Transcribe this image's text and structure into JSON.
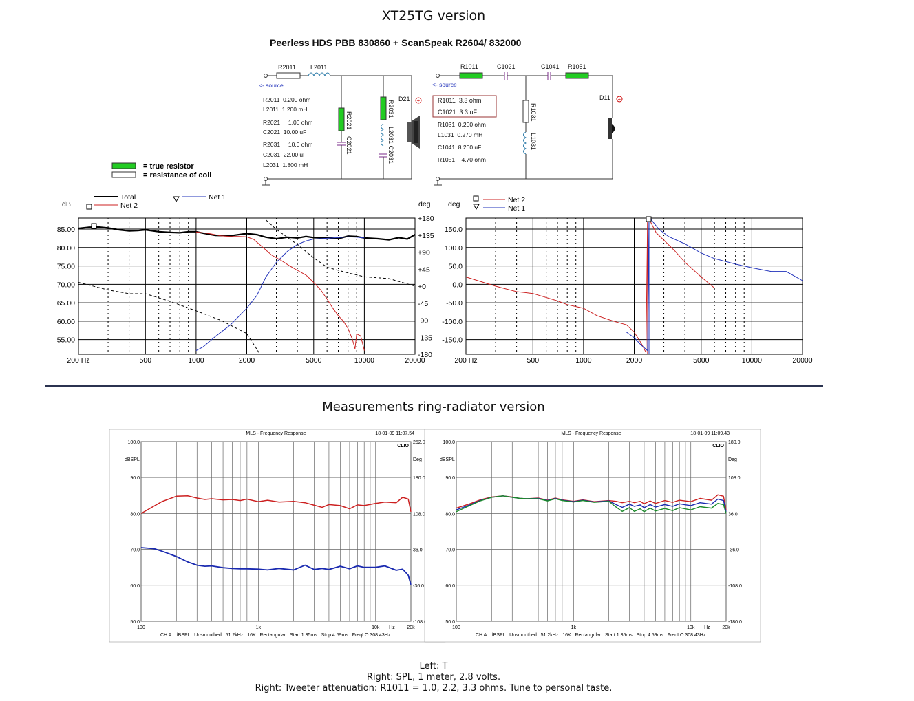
{
  "page": {
    "title": "XT25TG version",
    "subtitle": "Peerless HDS PBB 830860 + ScanSpeak R2604/ 832000",
    "measurements_title": "Measurements ring-radiator version",
    "captions": [
      "Left: T",
      "Right: SPL, 1 meter, 2.8 volts.",
      "Right: Tweeter attenuation: R1011 = 1.0, 2.2, 3.3 ohms. Tune to personal taste."
    ]
  },
  "schematic": {
    "woofer": {
      "labels": {
        "r2011": "R2011",
        "l2011": "L2011",
        "r2021": "R2021",
        "c2021": "C2021",
        "r2031": "R2031",
        "l2031_c2031": "L2031 C2031",
        "d21": "D21",
        "source": "<- source"
      },
      "values": [
        "R2011  0.200 ohm",
        "L2011  1.200 mH",
        "R2021     1.00 ohm",
        "C2021  10.00 uF",
        "R2031     10.0 ohm",
        "C2031  22.00 uF",
        "L2031  1.800 mH"
      ]
    },
    "tweeter": {
      "labels": {
        "r1011": "R1011",
        "c1021": "C1021",
        "c1041": "C1041",
        "r1051": "R1051",
        "r1031": "R1031",
        "l1031": "L1031",
        "d11": "D11",
        "source": "<- source"
      },
      "highlight": [
        "R1011  3.3 ohm",
        "C1021  3.3 uF"
      ],
      "values": [
        "R1031  0.200 ohm",
        "L1031  0.270 mH",
        "C1041  8.200 uF",
        "R1051    4.70 ohm"
      ]
    },
    "legend": {
      "true_resistor": "= true resistor",
      "coil_resistance": "= resistance of coil"
    },
    "colors": {
      "resistor_fill": "#22cc22",
      "capacitor": "#7a2a8a",
      "coil": "#2a7aa8",
      "plus": "#cc0000"
    }
  },
  "chart_data": [
    {
      "type": "line",
      "id": "sim-left",
      "left_axis_unit": "dB",
      "right_axis_unit": "deg",
      "x_scale": "log",
      "xlim": [
        200,
        20000
      ],
      "x_ticks": [
        {
          "v": 200,
          "label": "200 Hz"
        },
        {
          "v": 500,
          "label": "500"
        },
        {
          "v": 1000,
          "label": "1000"
        },
        {
          "v": 2000,
          "label": "2000"
        },
        {
          "v": 5000,
          "label": "5000"
        },
        {
          "v": 10000,
          "label": "10000"
        },
        {
          "v": 20000,
          "label": "20000"
        }
      ],
      "ylim_left": [
        51,
        88
      ],
      "y_ticks_left": [
        "55.00",
        "60.00",
        "65.00",
        "70.00",
        "75.00",
        "80.00",
        "85.00"
      ],
      "ylim_right": [
        -180,
        180
      ],
      "y_ticks_right": [
        "-180",
        "-135",
        "-90",
        "-45",
        "+0",
        "+45",
        "+90",
        "+135",
        "+180"
      ],
      "grid": true,
      "legend": [
        {
          "name": "Total",
          "color": "#000000"
        },
        {
          "name": "Net 2",
          "color": "#cc2222"
        },
        {
          "name": "Net 1",
          "color": "#2233bb"
        }
      ],
      "series": [
        {
          "name": "Total",
          "color": "#000000",
          "axis": "left",
          "width": 2.2,
          "x": [
            200,
            230,
            260,
            300,
            350,
            400,
            450,
            500,
            600,
            700,
            800,
            900,
            1000,
            1100,
            1300,
            1600,
            2000,
            2300,
            2600,
            3000,
            3500,
            4000,
            4500,
            5000,
            6000,
            7000,
            8000,
            9000,
            10000,
            12000,
            14000,
            16000,
            18000,
            20000
          ],
          "y": [
            85.2,
            85.5,
            85.6,
            85.3,
            84.8,
            84.5,
            84.6,
            84.8,
            84.3,
            84.1,
            84.0,
            84.3,
            84.3,
            83.9,
            83.3,
            83.2,
            83.8,
            83.5,
            82.8,
            82.4,
            82.8,
            82.6,
            83.0,
            82.7,
            82.7,
            82.4,
            83.1,
            83.0,
            82.6,
            82.4,
            82.1,
            82.7,
            82.3,
            83.5
          ]
        },
        {
          "name": "Net 2",
          "color": "#cc2222",
          "axis": "left",
          "width": 1,
          "x": [
            1000,
            1200,
            1400,
            1600,
            1800,
            2000,
            2200,
            2500,
            2800,
            3200,
            3600,
            4000,
            4500,
            5000,
            5500,
            6000,
            6500,
            7000,
            7500,
            8000,
            8500,
            8800,
            9000,
            9500,
            10000
          ],
          "y": [
            84.2,
            83.8,
            83.2,
            83.0,
            83.0,
            82.9,
            82.2,
            80.0,
            78.0,
            76.5,
            75.0,
            73.8,
            72.5,
            70.5,
            68.5,
            66.0,
            63.5,
            61.5,
            60.0,
            58.0,
            55.0,
            52.5,
            56.5,
            56.0,
            52.0
          ]
        },
        {
          "name": "Net 1",
          "color": "#2233bb",
          "axis": "left",
          "width": 1,
          "x": [
            1000,
            1100,
            1300,
            1600,
            2000,
            2300,
            2600,
            3000,
            3500,
            4000,
            4500,
            5000,
            6000,
            7000,
            8000,
            9000,
            10000
          ],
          "y": [
            52.0,
            53.0,
            55.8,
            59.0,
            63.5,
            67.0,
            72.0,
            76.0,
            79.0,
            80.8,
            81.8,
            82.3,
            82.5,
            82.7,
            82.9,
            82.8,
            82.6
          ]
        },
        {
          "name": "Total phase",
          "color": "#000000",
          "axis": "right",
          "dash": "4,3",
          "width": 1,
          "x": [
            200,
            300,
            400,
            500,
            700,
            1000,
            1400,
            2000,
            2400,
            2600,
            3000,
            4000,
            5000,
            6000,
            8000,
            10000,
            14000,
            20000
          ],
          "y": [
            10,
            -10,
            -20,
            -20,
            -40,
            -65,
            -90,
            -125,
            -180,
            175,
            150,
            110,
            75,
            50,
            35,
            25,
            20,
            0
          ]
        }
      ]
    },
    {
      "type": "line",
      "id": "sim-right",
      "left_axis_unit": "deg",
      "x_scale": "log",
      "xlim": [
        200,
        20000
      ],
      "x_ticks": [
        {
          "v": 200,
          "label": "200 Hz"
        },
        {
          "v": 500,
          "label": "500"
        },
        {
          "v": 1000,
          "label": "1000"
        },
        {
          "v": 2000,
          "label": "2000"
        },
        {
          "v": 5000,
          "label": "5000"
        },
        {
          "v": 10000,
          "label": "10000"
        },
        {
          "v": 20000,
          "label": "20000"
        }
      ],
      "ylim_left": [
        -190,
        180
      ],
      "y_ticks_left": [
        "-150.0",
        "-100.0",
        "-50.0",
        "0.0",
        "50.0",
        "100.0",
        "150.0"
      ],
      "grid": true,
      "legend": [
        {
          "name": "Net 2",
          "color": "#cc2222"
        },
        {
          "name": "Net 1",
          "color": "#2233bb"
        }
      ],
      "series": [
        {
          "name": "Net 2",
          "color": "#cc2222",
          "axis": "left",
          "width": 1,
          "x": [
            200,
            300,
            400,
            500,
            700,
            800,
            1000,
            1200,
            1500,
            1800,
            2000,
            2200,
            2350,
            2400,
            2450,
            2500,
            2700,
            3000,
            3500,
            4000,
            5000,
            6000
          ],
          "y": [
            20,
            -5,
            -20,
            -25,
            -45,
            -55,
            -65,
            -85,
            -100,
            -110,
            -130,
            -160,
            -185,
            170,
            175,
            170,
            140,
            120,
            90,
            60,
            20,
            -10
          ]
        },
        {
          "name": "Net 1",
          "color": "#2233bb",
          "axis": "left",
          "width": 1,
          "x": [
            1800,
            2000,
            2200,
            2400,
            2450,
            2500,
            2800,
            3200,
            4000,
            5000,
            6000,
            8000,
            10000,
            13000,
            16000,
            20000
          ],
          "y": [
            -130,
            -145,
            -165,
            -180,
            170,
            178,
            150,
            130,
            110,
            85,
            70,
            55,
            45,
            35,
            35,
            10
          ]
        }
      ]
    },
    {
      "type": "line",
      "id": "meas-left",
      "header_title": "MLS - Frequency Response",
      "timestamp": "18-01-09 11:07.54",
      "brand": "CLIO",
      "left_unit": "dBSPL",
      "right_unit": "Deg",
      "x_scale": "log",
      "xlim": [
        100,
        20000
      ],
      "x_ticks": [
        {
          "v": 100,
          "label": "100"
        },
        {
          "v": 1000,
          "label": "1k"
        },
        {
          "v": 10000,
          "label": "10k"
        },
        {
          "v": 20000,
          "label": "20k"
        }
      ],
      "x_unit_label": "Hz",
      "ylim_left": [
        50,
        100
      ],
      "y_ticks_left": [
        "50.0",
        "60.0",
        "70.0",
        "80.0",
        "90.0",
        "100.0"
      ],
      "y_ticks_right": [
        "-108.0",
        "-36.0",
        "36.0",
        "108.0",
        "180.0",
        "252.0"
      ],
      "footer": "CH A   dBSPL   Unsmoothed   51.2kHz   16K   Rectangular   Start 1.35ms   Stop 4.59ms   FreqLO 308.43Hz",
      "series": [
        {
          "name": "red",
          "color": "#cc2020",
          "width": 1.5,
          "x": [
            100,
            120,
            150,
            200,
            250,
            300,
            350,
            400,
            500,
            600,
            700,
            800,
            1000,
            1200,
            1500,
            2000,
            2500,
            3000,
            3500,
            4000,
            5000,
            6000,
            7000,
            8000,
            10000,
            12000,
            15000,
            17000,
            19000,
            20000
          ],
          "y": [
            80.0,
            81.5,
            83.3,
            84.8,
            84.9,
            84.3,
            83.9,
            84.1,
            83.8,
            83.9,
            83.6,
            84.0,
            83.3,
            83.7,
            83.2,
            83.4,
            83.0,
            82.3,
            81.7,
            82.5,
            82.2,
            81.3,
            82.4,
            82.2,
            82.8,
            83.2,
            83.0,
            84.5,
            84.0,
            80.5
          ]
        },
        {
          "name": "blue",
          "color": "#1a2ab0",
          "width": 1.8,
          "x": [
            100,
            130,
            160,
            200,
            250,
            300,
            350,
            400,
            500,
            600,
            700,
            800,
            1000,
            1200,
            1500,
            2000,
            2500,
            3000,
            3500,
            4000,
            5000,
            6000,
            7000,
            8000,
            10000,
            12000,
            15000,
            17000,
            19000,
            20000
          ],
          "y": [
            70.5,
            70.2,
            69.2,
            68.0,
            66.5,
            65.6,
            65.3,
            65.4,
            64.9,
            64.7,
            64.6,
            64.6,
            64.5,
            64.3,
            64.7,
            64.3,
            65.6,
            64.4,
            64.7,
            64.4,
            65.3,
            64.6,
            65.4,
            65.0,
            65.0,
            65.4,
            64.2,
            64.5,
            62.8,
            60.2
          ]
        }
      ]
    },
    {
      "type": "line",
      "id": "meas-right",
      "header_title": "MLS - Frequency Response",
      "timestamp": "18-01-09 11:09.43",
      "brand": "CLIO",
      "left_unit": "dBSPL",
      "right_unit": "Deg",
      "x_scale": "log",
      "xlim": [
        100,
        20000
      ],
      "x_ticks": [
        {
          "v": 100,
          "label": "100"
        },
        {
          "v": 1000,
          "label": "1k"
        },
        {
          "v": 10000,
          "label": "10k"
        },
        {
          "v": 20000,
          "label": "20k"
        }
      ],
      "x_unit_label": "Hz",
      "ylim_left": [
        50,
        100
      ],
      "y_ticks_left": [
        "50.0",
        "60.0",
        "70.0",
        "80.0",
        "90.0",
        "100.0"
      ],
      "y_ticks_right": [
        "-180.0",
        "-108.0",
        "-36.0",
        "36.0",
        "108.0",
        "180.0"
      ],
      "footer": "CH A   dBSPL   Unsmoothed   51.2kHz   16K   Rectangular   Start 1.35ms   Stop 4.59ms   FreqLO 308.43Hz",
      "series": [
        {
          "name": "red",
          "color": "#cc2020",
          "width": 1.4,
          "x": [
            100,
            130,
            160,
            200,
            250,
            300,
            350,
            400,
            500,
            600,
            700,
            800,
            1000,
            1200,
            1500,
            2000,
            2300,
            2600,
            3000,
            3300,
            3700,
            4000,
            4500,
            5000,
            6000,
            7000,
            8000,
            10000,
            12000,
            15000,
            17000,
            19000,
            20000
          ],
          "y": [
            81.5,
            82.7,
            83.8,
            84.6,
            84.9,
            84.6,
            84.2,
            84.1,
            84.3,
            83.7,
            84.3,
            83.8,
            83.4,
            83.8,
            83.3,
            83.6,
            83.4,
            83.0,
            83.4,
            83.0,
            83.4,
            82.7,
            83.5,
            82.8,
            83.6,
            83.1,
            83.7,
            83.3,
            84.2,
            83.7,
            85.2,
            84.8,
            81.0
          ]
        },
        {
          "name": "blue",
          "color": "#1a2ab0",
          "width": 1.4,
          "x": [
            100,
            130,
            160,
            200,
            250,
            300,
            350,
            400,
            500,
            600,
            700,
            800,
            1000,
            1200,
            1500,
            2000,
            2300,
            2600,
            3000,
            3300,
            3700,
            4000,
            4500,
            5000,
            6000,
            7000,
            8000,
            10000,
            12000,
            15000,
            17000,
            19000,
            20000
          ],
          "y": [
            81.0,
            82.4,
            83.6,
            84.5,
            84.9,
            84.5,
            84.2,
            84.1,
            84.2,
            83.6,
            84.2,
            83.7,
            83.3,
            83.7,
            83.2,
            83.5,
            82.5,
            81.7,
            82.6,
            82.0,
            82.4,
            81.6,
            82.5,
            81.8,
            82.5,
            82.0,
            82.7,
            82.2,
            83.0,
            82.6,
            84.0,
            83.6,
            80.5
          ]
        },
        {
          "name": "green",
          "color": "#1b8a2a",
          "width": 1.4,
          "x": [
            100,
            130,
            160,
            200,
            250,
            300,
            350,
            400,
            500,
            600,
            700,
            800,
            1000,
            1200,
            1500,
            2000,
            2300,
            2600,
            3000,
            3300,
            3700,
            4000,
            4500,
            5000,
            6000,
            7000,
            8000,
            10000,
            12000,
            15000,
            17000,
            19000,
            20000
          ],
          "y": [
            80.5,
            82.2,
            83.5,
            84.5,
            84.9,
            84.5,
            84.2,
            84.1,
            84.1,
            83.5,
            84.1,
            83.6,
            83.2,
            83.6,
            83.1,
            83.4,
            81.8,
            80.6,
            81.6,
            80.6,
            81.3,
            80.5,
            81.5,
            80.7,
            81.4,
            80.8,
            81.6,
            81.0,
            81.9,
            81.5,
            82.8,
            82.5,
            80.0
          ]
        }
      ]
    }
  ]
}
